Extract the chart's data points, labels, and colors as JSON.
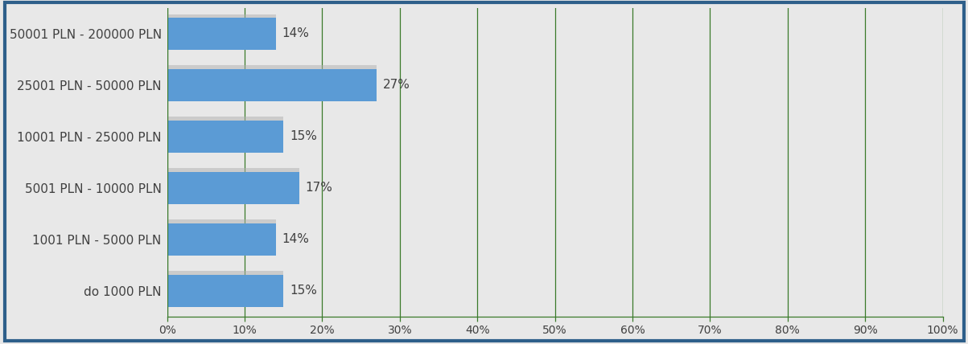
{
  "categories": [
    "50001 PLN - 200000 PLN",
    "25001 PLN - 50000 PLN",
    "10001 PLN - 25000 PLN",
    "5001 PLN - 10000 PLN",
    "1001 PLN - 5000 PLN",
    "do 1000 PLN"
  ],
  "values": [
    14,
    27,
    15,
    17,
    14,
    15
  ],
  "bar_color": "#5b9bd5",
  "background_color": "#e8e8e8",
  "grid_color": "#3a7a2a",
  "border_color": "#2e5f8a",
  "text_color": "#404040",
  "xlim": [
    0,
    100
  ],
  "xtick_values": [
    0,
    10,
    20,
    30,
    40,
    50,
    60,
    70,
    80,
    90,
    100
  ],
  "label_fontsize": 11,
  "tick_fontsize": 10,
  "bar_label_fontsize": 11
}
